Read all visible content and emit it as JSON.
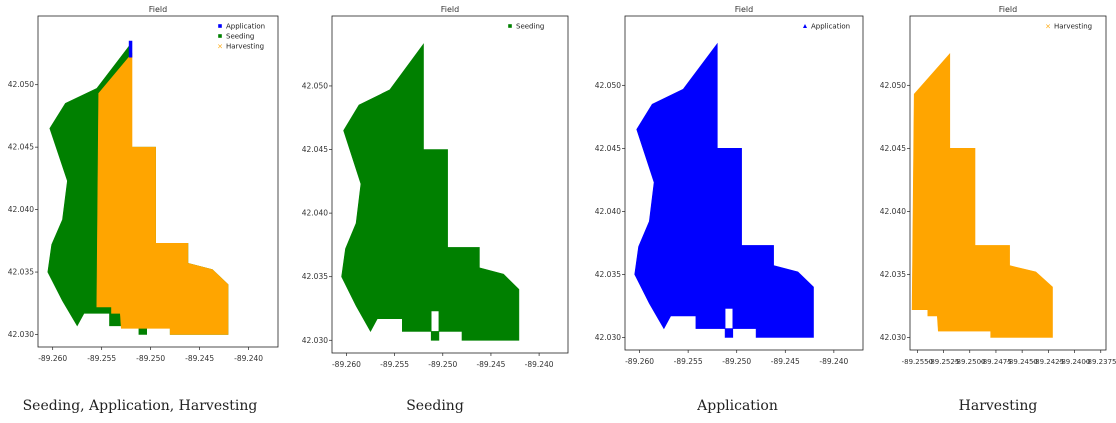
{
  "chart_data": [
    {
      "type": "scatter",
      "title": "Field",
      "caption": "Seeding, Application, Harvesting",
      "xlim": [
        -89.2615,
        -89.237
      ],
      "ylim": [
        42.029,
        42.0555
      ],
      "xticks": [
        "-89.260",
        "-89.255",
        "-89.250",
        "-89.245",
        "-89.240"
      ],
      "xtick_values": [
        -89.26,
        -89.255,
        -89.25,
        -89.245,
        -89.24
      ],
      "yticks": [
        "42.030",
        "42.035",
        "42.040",
        "42.045",
        "42.050"
      ],
      "ytick_values": [
        42.03,
        42.035,
        42.04,
        42.045,
        42.05
      ],
      "legend_position": "top-right",
      "legend": [
        {
          "label": "Application",
          "color": "#0000ff",
          "marker": "square"
        },
        {
          "label": "Seeding",
          "color": "#008000",
          "marker": "square"
        },
        {
          "label": "Harvesting",
          "color": "#ffa500",
          "marker": "x"
        }
      ],
      "layers": [
        "seeding",
        "harvesting",
        "application_strip"
      ]
    },
    {
      "type": "scatter",
      "title": "Field",
      "caption": "Seeding",
      "xlim": [
        -89.2615,
        -89.237
      ],
      "ylim": [
        42.029,
        42.0555
      ],
      "xticks": [
        "-89.260",
        "-89.255",
        "-89.250",
        "-89.245",
        "-89.240"
      ],
      "xtick_values": [
        -89.26,
        -89.255,
        -89.25,
        -89.245,
        -89.24
      ],
      "yticks": [
        "42.030",
        "42.035",
        "42.040",
        "42.045",
        "42.050"
      ],
      "ytick_values": [
        42.03,
        42.035,
        42.04,
        42.045,
        42.05
      ],
      "legend_position": "top-right",
      "legend": [
        {
          "label": "Seeding",
          "color": "#008000",
          "marker": "square"
        }
      ],
      "layers": [
        "seeding"
      ]
    },
    {
      "type": "scatter",
      "title": "Field",
      "caption": "Application",
      "xlim": [
        -89.2615,
        -89.237
      ],
      "ylim": [
        42.029,
        42.0555
      ],
      "xticks": [
        "-89.260",
        "-89.255",
        "-89.250",
        "-89.245",
        "-89.240"
      ],
      "xtick_values": [
        -89.26,
        -89.255,
        -89.25,
        -89.245,
        -89.24
      ],
      "yticks": [
        "42.030",
        "42.035",
        "42.040",
        "42.045",
        "42.050"
      ],
      "ytick_values": [
        42.03,
        42.035,
        42.04,
        42.045,
        42.05
      ],
      "legend_position": "top-right",
      "legend": [
        {
          "label": "Application",
          "color": "#0000ff",
          "marker": "triangle"
        }
      ],
      "layers": [
        "application"
      ]
    },
    {
      "type": "scatter",
      "title": "Field",
      "caption": "Harvesting",
      "xlim": [
        -89.2557,
        -89.237
      ],
      "ylim": [
        42.029,
        42.0555
      ],
      "xticks": [
        "-89.2550",
        "-89.2525",
        "-89.2500",
        "-89.2475",
        "-89.2450",
        "-89.2425",
        "-89.2400",
        "-89.2375"
      ],
      "xtick_values": [
        -89.255,
        -89.2525,
        -89.25,
        -89.2475,
        -89.245,
        -89.2425,
        -89.24,
        -89.2375
      ],
      "yticks": [
        "42.030",
        "42.035",
        "42.040",
        "42.045",
        "42.050"
      ],
      "ytick_values": [
        42.03,
        42.035,
        42.04,
        42.045,
        42.05
      ],
      "legend_position": "top-right",
      "legend": [
        {
          "label": "Harvesting",
          "color": "#ffa500",
          "marker": "x"
        }
      ],
      "layers": [
        "harvesting"
      ]
    }
  ],
  "shapes": {
    "seeding": {
      "color": "#008000",
      "outline": [
        [
          -89.252,
          42.0533
        ],
        [
          -89.252,
          42.045
        ],
        [
          -89.2495,
          42.045
        ],
        [
          -89.2495,
          42.0373
        ],
        [
          -89.2462,
          42.0373
        ],
        [
          -89.2462,
          42.0357
        ],
        [
          -89.2437,
          42.0352
        ],
        [
          -89.2421,
          42.034
        ],
        [
          -89.2421,
          42.03
        ],
        [
          -89.248,
          42.03
        ],
        [
          -89.248,
          42.0307
        ],
        [
          -89.2542,
          42.0307
        ],
        [
          -89.2542,
          42.0317
        ],
        [
          -89.2568,
          42.0317
        ],
        [
          -89.2575,
          42.0307
        ],
        [
          -89.259,
          42.0327
        ],
        [
          -89.2605,
          42.035
        ],
        [
          -89.2601,
          42.0372
        ],
        [
          -89.259,
          42.0392
        ],
        [
          -89.2585,
          42.0423
        ],
        [
          -89.2603,
          42.0465
        ],
        [
          -89.2587,
          42.0485
        ],
        [
          -89.2555,
          42.0497
        ]
      ],
      "holes": [
        [
          [
            -89.2512,
            42.03
          ],
          [
            -89.2504,
            42.03
          ],
          [
            -89.2504,
            42.0323
          ],
          [
            -89.2512,
            42.0323
          ]
        ]
      ]
    },
    "application": {
      "color": "#0000ff",
      "outline": [
        [
          -89.252,
          42.0533
        ],
        [
          -89.252,
          42.045
        ],
        [
          -89.2495,
          42.045
        ],
        [
          -89.2495,
          42.0373
        ],
        [
          -89.2462,
          42.0373
        ],
        [
          -89.2462,
          42.0357
        ],
        [
          -89.2437,
          42.0352
        ],
        [
          -89.2421,
          42.034
        ],
        [
          -89.2421,
          42.03
        ],
        [
          -89.248,
          42.03
        ],
        [
          -89.248,
          42.0307
        ],
        [
          -89.2542,
          42.0307
        ],
        [
          -89.2542,
          42.0317
        ],
        [
          -89.2568,
          42.0317
        ],
        [
          -89.2575,
          42.0307
        ],
        [
          -89.259,
          42.0327
        ],
        [
          -89.2605,
          42.035
        ],
        [
          -89.2601,
          42.0372
        ],
        [
          -89.259,
          42.0392
        ],
        [
          -89.2585,
          42.0423
        ],
        [
          -89.2603,
          42.0465
        ],
        [
          -89.2587,
          42.0485
        ],
        [
          -89.2555,
          42.0497
        ]
      ],
      "holes": [
        [
          [
            -89.2512,
            42.03
          ],
          [
            -89.2504,
            42.03
          ],
          [
            -89.2504,
            42.0323
          ],
          [
            -89.2512,
            42.0323
          ]
        ]
      ]
    },
    "harvesting": {
      "color": "#ffa500",
      "outline": [
        [
          -89.2519,
          42.0525
        ],
        [
          -89.2519,
          42.045
        ],
        [
          -89.2495,
          42.045
        ],
        [
          -89.2495,
          42.0373
        ],
        [
          -89.2462,
          42.0373
        ],
        [
          -89.2462,
          42.0357
        ],
        [
          -89.2437,
          42.0352
        ],
        [
          -89.2421,
          42.034
        ],
        [
          -89.2421,
          42.03
        ],
        [
          -89.248,
          42.03
        ],
        [
          -89.248,
          42.0305
        ],
        [
          -89.253,
          42.0305
        ],
        [
          -89.2531,
          42.0317
        ],
        [
          -89.254,
          42.0317
        ],
        [
          -89.254,
          42.0322
        ],
        [
          -89.2555,
          42.0322
        ],
        [
          -89.2553,
          42.0493
        ]
      ],
      "holes": []
    },
    "application_strip": {
      "color": "#0000ff",
      "outline": [
        [
          -89.2522,
          42.0535
        ],
        [
          -89.2519,
          42.0535
        ],
        [
          -89.2519,
          42.0522
        ],
        [
          -89.2522,
          42.0522
        ]
      ],
      "holes": []
    }
  }
}
